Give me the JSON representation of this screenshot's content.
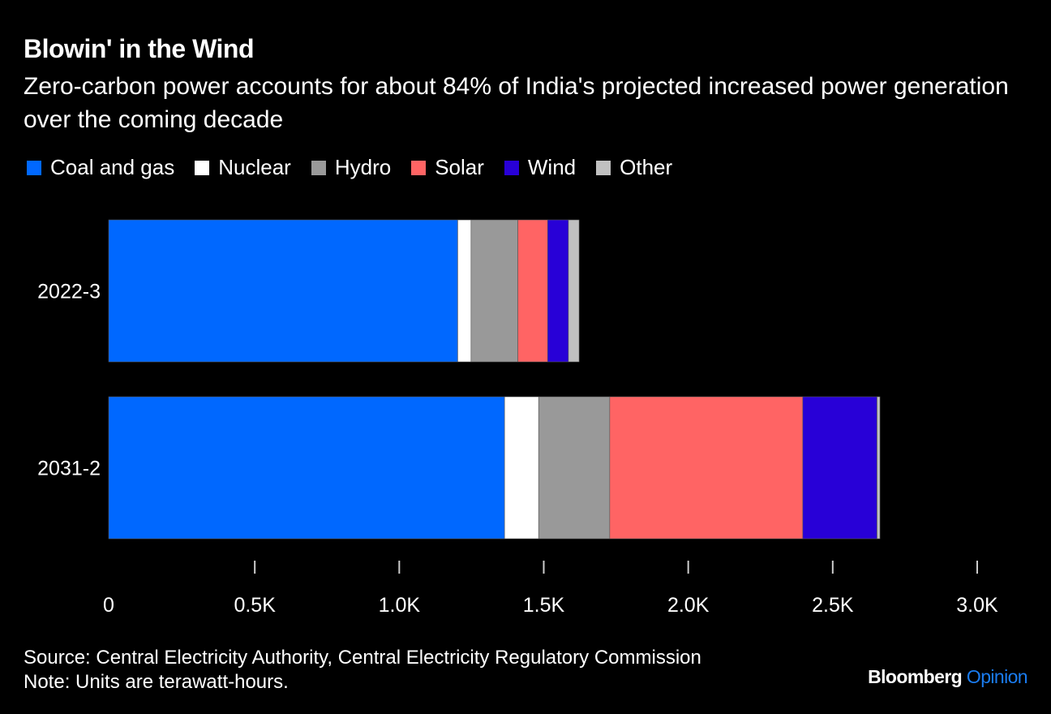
{
  "header": {
    "title": "Blowin' in the Wind",
    "subtitle": "Zero-carbon power accounts for about 84% of India's projected increased power generation over the coming decade"
  },
  "footer": {
    "source": "Source: Central Electricity Authority, Central Electricity Regulatory Commission",
    "note": "Note: Units are terawatt-hours.",
    "brand_main": "Bloomberg",
    "brand_sub": "Opinion"
  },
  "chart_data": {
    "type": "bar",
    "orientation": "horizontal",
    "stacked": true,
    "title": "Blowin' in the Wind",
    "subtitle": "Zero-carbon power accounts for about 84% of India's projected increased power generation over the coming decade",
    "xlabel": "",
    "ylabel": "",
    "units": "TWh",
    "categories": [
      "2022-3",
      "2031-2"
    ],
    "series": [
      {
        "name": "Coal and gas",
        "color": "#0068ff",
        "values": [
          1208,
          1370
        ]
      },
      {
        "name": "Nuclear",
        "color": "#ffffff",
        "values": [
          46,
          118
        ]
      },
      {
        "name": "Hydro",
        "color": "#999999",
        "values": [
          162,
          246
        ]
      },
      {
        "name": "Solar",
        "color": "#ff6464",
        "values": [
          103,
          668
        ]
      },
      {
        "name": "Wind",
        "color": "#2800d7",
        "values": [
          72,
          257
        ]
      },
      {
        "name": "Other",
        "color": "#c0c0c0",
        "values": [
          37,
          10
        ]
      }
    ],
    "xlim": [
      0,
      3000
    ],
    "xticks": [
      0,
      500,
      1000,
      1500,
      2000,
      2500,
      3000
    ],
    "xtick_labels": [
      "0",
      "0.5K",
      "1.0K",
      "1.5K",
      "2.0K",
      "2.5K",
      "3.0K"
    ],
    "legend_position": "top-left",
    "grid": false
  }
}
